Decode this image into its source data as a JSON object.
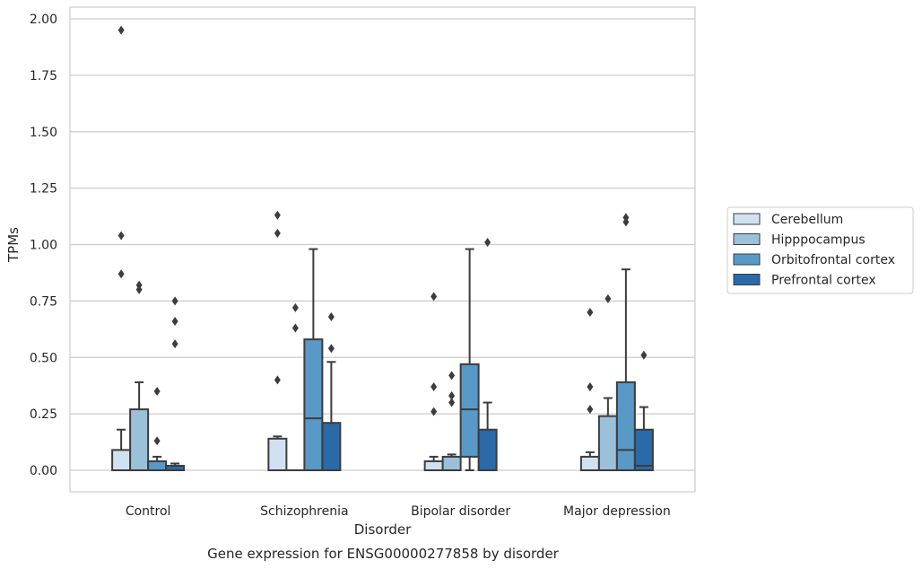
{
  "chart_data": {
    "type": "box",
    "title": "",
    "caption": "Gene expression for ENSG00000277858 by disorder",
    "xlabel": "Disorder",
    "ylabel": "TPMs",
    "ylim": [
      -0.1,
      2.03
    ],
    "yticks": [
      0.0,
      0.25,
      0.5,
      0.75,
      1.0,
      1.25,
      1.5,
      1.75,
      2.0
    ],
    "ytick_labels": [
      "0.00",
      "0.25",
      "0.50",
      "0.75",
      "1.00",
      "1.25",
      "1.50",
      "1.75",
      "2.00"
    ],
    "grid": "horizontal",
    "legend_position": "outside-right",
    "categories": [
      "Control",
      "Schizophrenia",
      "Bipolar disorder",
      "Major depression"
    ],
    "series": [
      {
        "name": "Cerebellum",
        "color": "#d0e1f2",
        "boxes": [
          {
            "q1": 0.0,
            "median": 0.0,
            "q3": 0.09,
            "whisker_low": 0.0,
            "whisker_high": 0.18,
            "outliers": [
              1.95,
              1.04,
              0.87
            ]
          },
          {
            "q1": 0.0,
            "median": 0.0,
            "q3": 0.14,
            "whisker_low": 0.0,
            "whisker_high": 0.15,
            "outliers": [
              1.13,
              1.05,
              0.4
            ]
          },
          {
            "q1": 0.0,
            "median": 0.0,
            "q3": 0.04,
            "whisker_low": 0.0,
            "whisker_high": 0.06,
            "outliers": [
              0.77,
              0.37,
              0.26
            ]
          },
          {
            "q1": 0.0,
            "median": 0.0,
            "q3": 0.06,
            "whisker_low": 0.0,
            "whisker_high": 0.08,
            "outliers": [
              0.7,
              0.37,
              0.27
            ]
          }
        ]
      },
      {
        "name": "Hipppocampus",
        "color": "#9ac0da",
        "boxes": [
          {
            "q1": 0.0,
            "median": 0.0,
            "q3": 0.27,
            "whisker_low": 0.0,
            "whisker_high": 0.39,
            "outliers": [
              0.82,
              0.8
            ]
          },
          {
            "q1": 0.0,
            "median": 0.0,
            "q3": 0.0,
            "whisker_low": 0.0,
            "whisker_high": 0.0,
            "outliers": [
              0.72,
              0.63
            ]
          },
          {
            "q1": 0.0,
            "median": 0.0,
            "q3": 0.06,
            "whisker_low": 0.0,
            "whisker_high": 0.07,
            "outliers": [
              0.42,
              0.33,
              0.3
            ]
          },
          {
            "q1": 0.0,
            "median": 0.0,
            "q3": 0.24,
            "whisker_low": 0.0,
            "whisker_high": 0.32,
            "outliers": [
              0.76
            ]
          }
        ]
      },
      {
        "name": "Orbitofrontal cortex",
        "color": "#5899c6",
        "boxes": [
          {
            "q1": 0.0,
            "median": 0.0,
            "q3": 0.04,
            "whisker_low": 0.0,
            "whisker_high": 0.06,
            "outliers": [
              0.35,
              0.13
            ]
          },
          {
            "q1": 0.0,
            "median": 0.23,
            "q3": 0.58,
            "whisker_low": 0.0,
            "whisker_high": 0.98,
            "outliers": []
          },
          {
            "q1": 0.06,
            "median": 0.27,
            "q3": 0.47,
            "whisker_low": 0.0,
            "whisker_high": 0.98,
            "outliers": []
          },
          {
            "q1": 0.0,
            "median": 0.09,
            "q3": 0.39,
            "whisker_low": 0.0,
            "whisker_high": 0.89,
            "outliers": [
              1.12,
              1.1
            ]
          }
        ]
      },
      {
        "name": "Prefrontal cortex",
        "color": "#2a6aa8",
        "boxes": [
          {
            "q1": 0.0,
            "median": 0.0,
            "q3": 0.02,
            "whisker_low": 0.0,
            "whisker_high": 0.03,
            "outliers": [
              0.75,
              0.66,
              0.56
            ]
          },
          {
            "q1": 0.0,
            "median": 0.0,
            "q3": 0.21,
            "whisker_low": 0.0,
            "whisker_high": 0.48,
            "outliers": [
              0.68,
              0.54
            ]
          },
          {
            "q1": 0.0,
            "median": 0.0,
            "q3": 0.18,
            "whisker_low": 0.0,
            "whisker_high": 0.3,
            "outliers": [
              1.01
            ]
          },
          {
            "q1": 0.0,
            "median": 0.02,
            "q3": 0.18,
            "whisker_low": 0.0,
            "whisker_high": 0.28,
            "outliers": [
              0.51
            ]
          }
        ]
      }
    ]
  }
}
